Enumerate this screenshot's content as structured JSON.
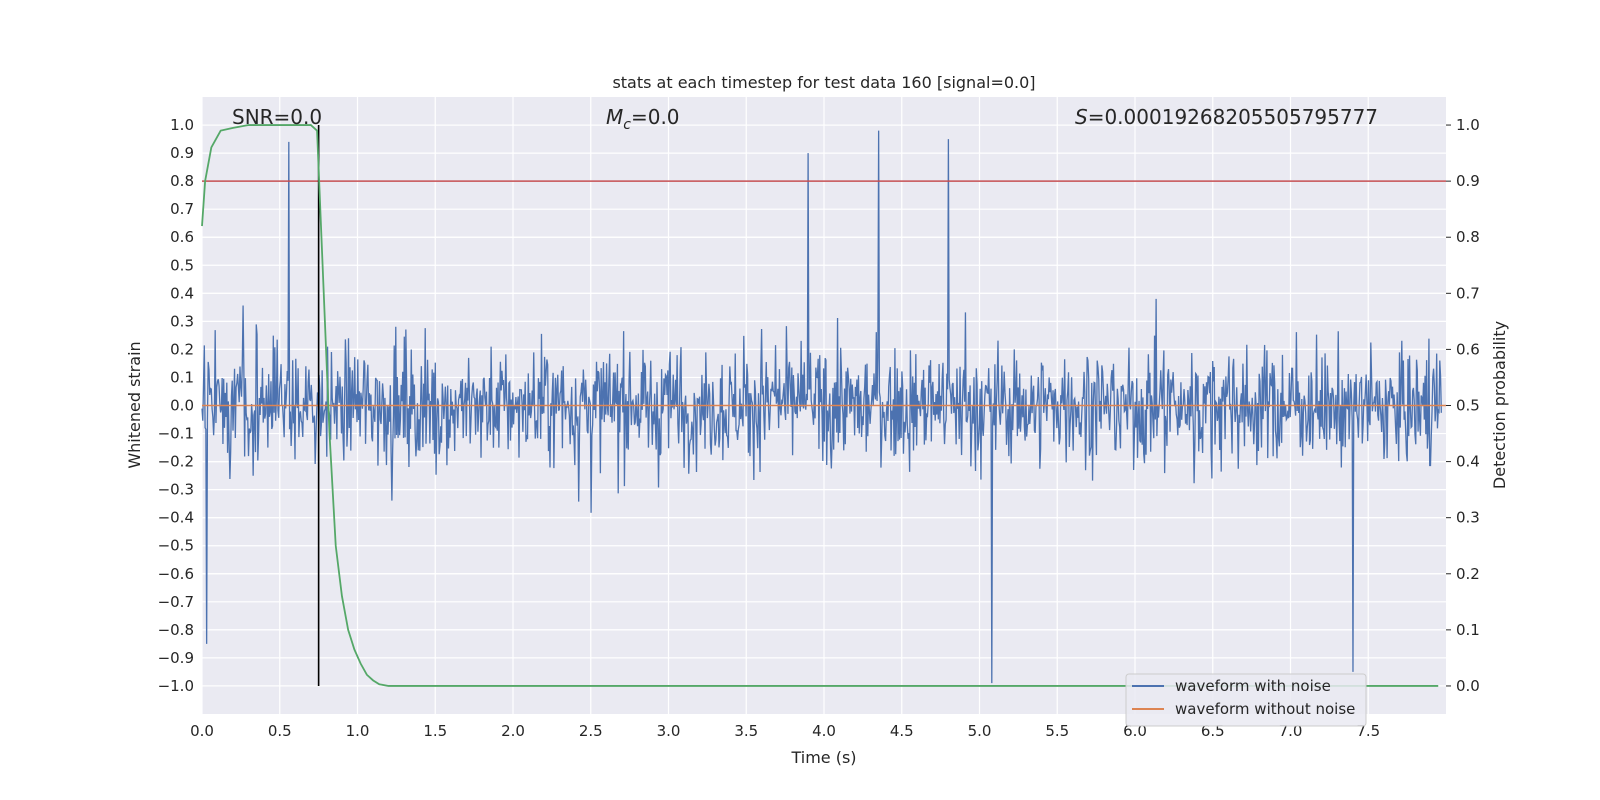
{
  "chart_data": {
    "type": "line",
    "title": "stats at each timestep for test data 160 [signal=0.0]",
    "xlabel": "Time (s)",
    "ylabel": "Whitened strain",
    "y2label": "Detection probability",
    "xlim": [
      0.0,
      8.0
    ],
    "ylim": [
      -1.1,
      1.1
    ],
    "y2lim": [
      -0.05,
      1.05
    ],
    "x_ticks": [
      "0.0",
      "0.5",
      "1.0",
      "1.5",
      "2.0",
      "2.5",
      "3.0",
      "3.5",
      "4.0",
      "4.5",
      "5.0",
      "5.5",
      "6.0",
      "6.5",
      "7.0",
      "7.5"
    ],
    "y_ticks": [
      "1.0",
      "0.9",
      "0.8",
      "0.7",
      "0.6",
      "0.5",
      "0.4",
      "0.3",
      "0.2",
      "0.1",
      "0.0",
      "−0.1",
      "−0.2",
      "−0.3",
      "−0.4",
      "−0.5",
      "−0.6",
      "−0.7",
      "−0.8",
      "−0.9",
      "−1.0"
    ],
    "y2_ticks": [
      "1.0",
      "0.9",
      "0.8",
      "0.7",
      "0.6",
      "0.5",
      "0.4",
      "0.3",
      "0.2",
      "0.1",
      "0.0"
    ],
    "annotations": {
      "snr": "SNR=0.0",
      "mc": "=0.0",
      "mc_symbol": "M",
      "mc_sub": "c",
      "s_symbol": "S",
      "s_value": "=0.00019268205505795777"
    },
    "legend": {
      "location": "lower-right",
      "entries": [
        "waveform with noise",
        "waveform without noise"
      ]
    },
    "threshold_line": {
      "axis": "y2",
      "value": 0.9
    },
    "marker_line": {
      "x": 0.75,
      "y_range": [
        -1.0,
        1.0
      ]
    },
    "series": [
      {
        "name": "waveform with noise",
        "axis": "y",
        "color": "#4c72b0",
        "kind": "noise",
        "samples": 1600,
        "amplitude_range": [
          -1.0,
          1.0
        ],
        "description_points": {
          "peaks": [
            [
              0.56,
              0.94
            ],
            [
              4.35,
              0.98
            ],
            [
              4.8,
              0.95
            ],
            [
              5.08,
              -0.99
            ],
            [
              7.4,
              -0.95
            ],
            [
              0.03,
              -0.85
            ],
            [
              3.9,
              0.9
            ]
          ]
        }
      },
      {
        "name": "waveform without noise",
        "axis": "y",
        "color": "#dd8452",
        "x": [
          0.0,
          8.0
        ],
        "y": [
          0.0,
          0.0
        ]
      },
      {
        "name": "detection probability",
        "axis": "y2",
        "color": "#55a868",
        "x": [
          0.0,
          0.02,
          0.06,
          0.12,
          0.2,
          0.3,
          0.4,
          0.5,
          0.6,
          0.7,
          0.74,
          0.78,
          0.82,
          0.86,
          0.9,
          0.94,
          0.98,
          1.02,
          1.06,
          1.1,
          1.14,
          1.2,
          1.3,
          1.5,
          2.0,
          3.0,
          4.0,
          5.0,
          6.0,
          7.0,
          7.95
        ],
        "y": [
          0.82,
          0.9,
          0.96,
          0.99,
          0.995,
          1.0,
          1.0,
          1.0,
          1.0,
          1.0,
          0.99,
          0.72,
          0.45,
          0.25,
          0.16,
          0.1,
          0.065,
          0.04,
          0.02,
          0.01,
          0.003,
          0.0,
          0.0,
          0.0,
          0.0,
          0.0,
          0.0,
          0.0,
          0.0,
          0.0,
          0.0
        ]
      }
    ]
  }
}
